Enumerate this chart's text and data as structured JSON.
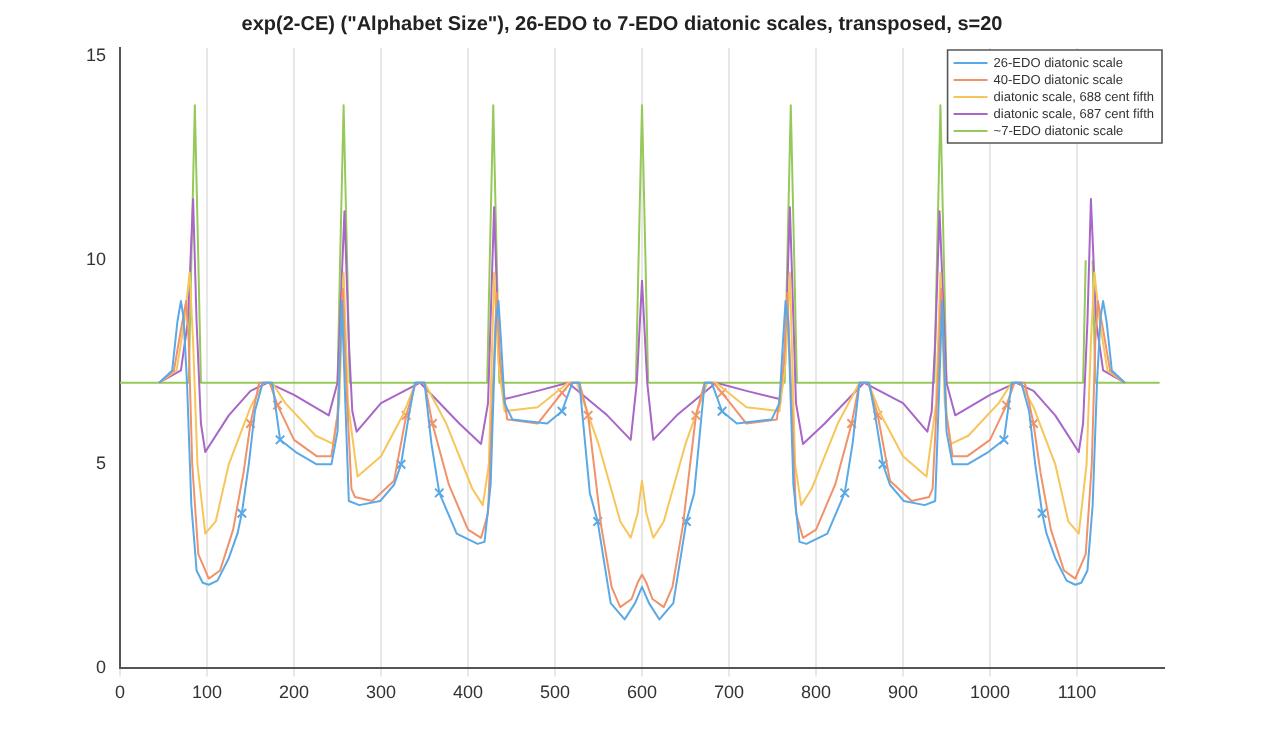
{
  "chart_data": {
    "type": "line",
    "title": "exp(2-CE) (\"Alphabet Size\"), 26-EDO to 7-EDO diatonic scales, transposed, s=20",
    "xlim": [
      0,
      1200
    ],
    "xticks": [
      0,
      100,
      200,
      300,
      400,
      500,
      600,
      700,
      800,
      900,
      1000,
      1100
    ],
    "ylim": [
      0,
      15.2
    ],
    "yticks": [
      0,
      5,
      10,
      15
    ],
    "grid": "x",
    "legend": "top right",
    "marker": "none",
    "line_style": "solid",
    "series": [
      {
        "name": "26-EDO diatonic scale",
        "color": "#5aa9e6",
        "x": [
          45,
          60,
          66,
          70,
          73,
          77,
          82,
          88,
          95,
          102,
          112,
          125,
          135,
          140,
          148,
          155,
          164,
          175,
          184,
          202,
          226,
          243,
          250,
          255,
          259,
          263,
          275,
          299,
          315,
          323,
          332,
          339,
          350,
          358,
          367,
          387,
          411,
          419,
          426,
          432,
          435,
          438,
          442,
          451,
          491,
          508,
          520,
          528,
          540,
          549,
          564,
          580,
          592,
          600,
          608,
          620,
          636,
          651,
          660,
          672,
          680,
          692,
          709,
          749,
          758,
          762,
          765,
          768,
          774,
          781,
          789,
          813,
          833,
          842,
          850,
          861,
          868,
          877,
          885,
          901,
          925,
          937,
          941,
          945,
          950,
          957,
          974,
          998,
          1016,
          1025,
          1036,
          1045,
          1052,
          1060,
          1065,
          1075,
          1088,
          1098,
          1105,
          1112,
          1118,
          1123,
          1127,
          1130,
          1134,
          1140,
          1155
        ],
        "values": [
          7,
          7.3,
          8.5,
          9,
          8.6,
          7,
          4,
          2.4,
          2.1,
          2.05,
          2.15,
          2.7,
          3.3,
          3.8,
          5,
          6.3,
          7,
          7,
          5.6,
          5.3,
          5,
          5,
          5.8,
          9,
          6.5,
          4.1,
          4,
          4.1,
          4.5,
          5,
          6.2,
          7,
          7,
          5.5,
          4.3,
          3.3,
          3.05,
          3.1,
          4.5,
          8.5,
          9,
          8,
          6.5,
          6.1,
          6,
          6.3,
          7,
          7,
          4.3,
          3.6,
          1.6,
          1.2,
          1.6,
          2,
          1.6,
          1.2,
          1.6,
          3.6,
          4.3,
          7,
          7,
          6.3,
          6,
          6.1,
          6.5,
          8,
          9,
          8.5,
          4.5,
          3.1,
          3.05,
          3.3,
          4.3,
          5.5,
          7,
          7,
          6.2,
          5,
          4.5,
          4.1,
          4,
          4.1,
          6.5,
          9,
          5.8,
          5,
          5,
          5.3,
          5.6,
          7,
          7,
          6.3,
          5,
          3.8,
          3.3,
          2.7,
          2.15,
          2.05,
          2.1,
          2.4,
          4,
          7,
          8.6,
          9,
          8.5,
          7.3,
          7
        ]
      },
      {
        "name": "40-EDO diatonic scale",
        "color": "#f0926a",
        "x": [
          45,
          62,
          70,
          76,
          79,
          83,
          90,
          102,
          115,
          130,
          142,
          150,
          160,
          172,
          181,
          200,
          226,
          243,
          250,
          256,
          260,
          266,
          270,
          290,
          315,
          329,
          340,
          350,
          359,
          378,
          400,
          415,
          423,
          428,
          433,
          437,
          445,
          480,
          508,
          518,
          528,
          538,
          553,
          565,
          575,
          588,
          595,
          600,
          605,
          612,
          625,
          635,
          647,
          662,
          672,
          682,
          692,
          720,
          755,
          763,
          767,
          772,
          777,
          785,
          800,
          822,
          841,
          850,
          860,
          871,
          885,
          910,
          930,
          934,
          940,
          944,
          950,
          957,
          974,
          1000,
          1019,
          1028,
          1040,
          1050,
          1058,
          1070,
          1085,
          1098,
          1110,
          1117,
          1121,
          1124,
          1130,
          1138,
          1155
        ],
        "values": [
          7,
          7.3,
          8.3,
          9,
          8,
          5,
          2.8,
          2.2,
          2.4,
          3.4,
          4.8,
          6,
          7,
          7,
          6.45,
          5.6,
          5.2,
          5.2,
          6.2,
          9.3,
          7,
          4.4,
          4.2,
          4.1,
          4.6,
          6.2,
          7,
          7,
          6,
          4.5,
          3.4,
          3.2,
          3.8,
          6.5,
          9.2,
          7.5,
          6.1,
          6,
          6.75,
          7,
          7,
          6.2,
          3.5,
          2,
          1.5,
          1.7,
          2.1,
          2.3,
          2.1,
          1.7,
          1.5,
          2,
          3.5,
          6.2,
          7,
          7,
          6.75,
          6,
          6.1,
          7.5,
          9.2,
          6.5,
          3.8,
          3.2,
          3.4,
          4.5,
          6,
          7,
          7,
          6.2,
          4.6,
          4.1,
          4.2,
          4.4,
          7,
          9.3,
          6.2,
          5.2,
          5.2,
          5.6,
          6.45,
          7,
          7,
          6,
          4.8,
          3.4,
          2.4,
          2.2,
          2.8,
          5,
          8,
          9,
          8.3,
          7.3,
          7
        ]
      },
      {
        "name": "diatonic scale, 688 cent fifth",
        "color": "#f7c65a",
        "x": [
          45,
          65,
          74,
          80,
          84,
          89,
          98,
          110,
          125,
          150,
          165,
          175,
          190,
          225,
          245,
          252,
          257,
          262,
          273,
          300,
          325,
          340,
          350,
          375,
          405,
          417,
          424,
          430,
          435,
          442,
          480,
          515,
          525,
          550,
          575,
          587,
          595,
          600,
          605,
          613,
          625,
          650,
          675,
          685,
          720,
          758,
          765,
          770,
          776,
          783,
          795,
          825,
          850,
          860,
          875,
          900,
          927,
          938,
          943,
          948,
          955,
          975,
          1010,
          1025,
          1035,
          1050,
          1075,
          1090,
          1102,
          1111,
          1116,
          1120,
          1126,
          1135,
          1155
        ],
        "values": [
          7,
          7.3,
          8.5,
          9.7,
          8,
          5,
          3.3,
          3.6,
          5,
          6.4,
          7,
          7,
          6.5,
          5.7,
          5.5,
          6.5,
          9.7,
          6.5,
          4.7,
          5.2,
          6.2,
          7,
          7,
          6,
          4.4,
          4,
          5,
          9.7,
          7.5,
          6.3,
          6.4,
          7,
          7,
          5.5,
          3.6,
          3.2,
          3.8,
          4.6,
          3.8,
          3.2,
          3.6,
          5.5,
          7,
          7,
          6.4,
          6.3,
          7.5,
          9.7,
          5,
          4,
          4.4,
          6,
          7,
          7,
          6.2,
          5.2,
          4.7,
          6.5,
          9.7,
          6.5,
          5.5,
          5.7,
          6.5,
          7,
          7,
          6.4,
          5,
          3.6,
          3.3,
          5,
          8,
          9.7,
          8.5,
          7.3,
          7
        ]
      },
      {
        "name": "diatonic scale, 687 cent fifth",
        "color": "#a866c8",
        "x": [
          45,
          70,
          78,
          84,
          88,
          93,
          98,
          125,
          150,
          170,
          200,
          240,
          250,
          258,
          263,
          267,
          272,
          300,
          345,
          390,
          415,
          423,
          430,
          435,
          439,
          442,
          480,
          515,
          560,
          587,
          594,
          600,
          606,
          613,
          640,
          685,
          720,
          758,
          761,
          765,
          770,
          777,
          785,
          810,
          855,
          900,
          928,
          933,
          937,
          942,
          950,
          960,
          1000,
          1030,
          1050,
          1075,
          1102,
          1107,
          1112,
          1116,
          1122,
          1130,
          1155
        ],
        "values": [
          7,
          7.3,
          8.5,
          11.5,
          8.5,
          6,
          5.3,
          6.2,
          6.8,
          7,
          6.7,
          6.2,
          7,
          11.2,
          8,
          6.3,
          5.8,
          6.5,
          7,
          6,
          5.5,
          6.5,
          11.3,
          8,
          6.9,
          6.6,
          6.8,
          7,
          6.2,
          5.6,
          7,
          9.5,
          7,
          5.6,
          6.2,
          7,
          6.8,
          6.6,
          6.9,
          8,
          11.3,
          6.5,
          5.5,
          6,
          7,
          6.5,
          5.8,
          6.3,
          8,
          11.2,
          7,
          6.2,
          6.7,
          7,
          6.8,
          6.2,
          5.3,
          6,
          8.5,
          11.5,
          8.5,
          7.3,
          7
        ]
      },
      {
        "name": "~7-EDO diatonic scale",
        "color": "#96c95a",
        "x": [
          0,
          79,
          82,
          86,
          90,
          93,
          250,
          253,
          257,
          261,
          264,
          422,
          425,
          429,
          433,
          436,
          593,
          596,
          600,
          604,
          607,
          764,
          767,
          771,
          775,
          778,
          936,
          939,
          943,
          947,
          950,
          1107,
          1110,
          1114,
          1118,
          1121,
          1195
        ],
        "values": [
          7,
          7,
          10,
          13.8,
          10,
          7,
          7,
          10,
          13.8,
          10,
          7,
          7,
          10,
          13.8,
          10,
          7,
          7,
          10,
          13.8,
          10,
          7,
          7,
          10,
          13.8,
          10,
          7,
          7,
          10,
          13.8,
          10,
          7,
          7,
          10,
          null,
          10,
          7,
          7
        ]
      },
      {
        "type": "scatter",
        "marker": "cross",
        "color": "#5aa9e6",
        "x": [
          140,
          184,
          323,
          367,
          508,
          549,
          651,
          692,
          833,
          877,
          1016,
          1060
        ],
        "values": [
          3.8,
          5.6,
          5,
          4.3,
          6.3,
          3.6,
          3.6,
          6.3,
          4.3,
          5,
          5.6,
          3.8
        ]
      },
      {
        "type": "scatter",
        "marker": "cross",
        "color": "#f0926a",
        "x": [
          150,
          181,
          329,
          359,
          508,
          538,
          662,
          692,
          841,
          871,
          1019,
          1050
        ],
        "values": [
          6,
          6.45,
          6.2,
          6,
          6.75,
          6.2,
          6.2,
          6.75,
          6,
          6.2,
          6.45,
          6
        ]
      }
    ]
  }
}
